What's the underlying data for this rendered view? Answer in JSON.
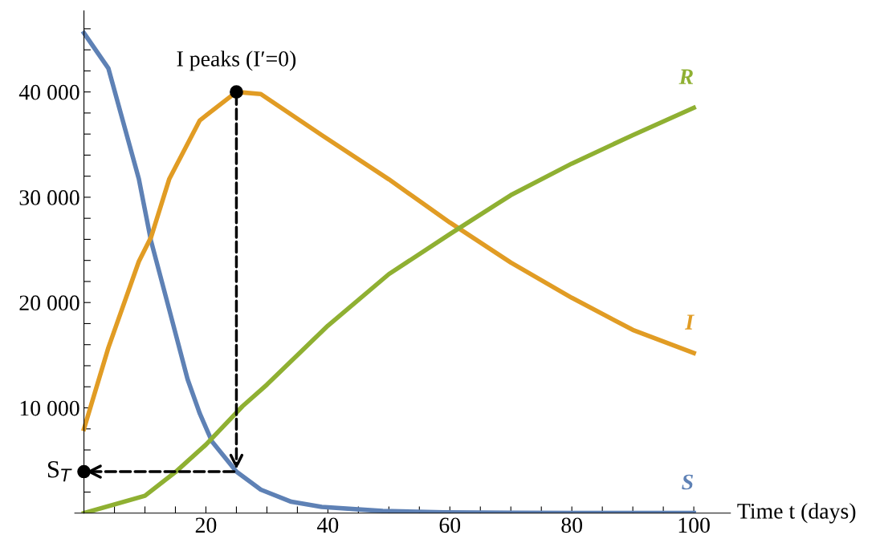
{
  "chart_data": {
    "type": "line",
    "xlabel": "Time t (days)",
    "xlim": [
      -1.5,
      106
    ],
    "ylim": [
      0,
      47700
    ],
    "xticks": [
      {
        "value": 5,
        "label": null
      },
      {
        "value": 10,
        "label": null
      },
      {
        "value": 15,
        "label": null
      },
      20,
      {
        "value": 25,
        "label": null
      },
      {
        "value": 30,
        "label": null
      },
      {
        "value": 35,
        "label": null
      },
      40,
      {
        "value": 45,
        "label": null
      },
      {
        "value": 50,
        "label": null
      },
      {
        "value": 55,
        "label": null
      },
      60,
      {
        "value": 65,
        "label": null
      },
      {
        "value": 70,
        "label": null
      },
      {
        "value": 75,
        "label": null
      },
      80,
      {
        "value": 85,
        "label": null
      },
      {
        "value": 90,
        "label": null
      },
      {
        "value": 95,
        "label": null
      },
      100
    ],
    "yticks": [
      {
        "value": 2000,
        "label": null
      },
      {
        "value": 4000,
        "label": null
      },
      {
        "value": 6000,
        "label": null
      },
      {
        "value": 8000,
        "label": null
      },
      {
        "value": 10000,
        "label": "10 000"
      },
      {
        "value": 12000,
        "label": null
      },
      {
        "value": 14000,
        "label": null
      },
      {
        "value": 16000,
        "label": null
      },
      {
        "value": 18000,
        "label": null
      },
      {
        "value": 20000,
        "label": "20 000"
      },
      {
        "value": 22000,
        "label": null
      },
      {
        "value": 24000,
        "label": null
      },
      {
        "value": 26000,
        "label": null
      },
      {
        "value": 28000,
        "label": null
      },
      {
        "value": 30000,
        "label": "30 000"
      },
      {
        "value": 32000,
        "label": null
      },
      {
        "value": 34000,
        "label": null
      },
      {
        "value": 36000,
        "label": null
      },
      {
        "value": 38000,
        "label": null
      },
      {
        "value": 40000,
        "label": "40 000"
      },
      {
        "value": 42000,
        "label": null
      },
      {
        "value": 44000,
        "label": null
      },
      {
        "value": 46000,
        "label": null
      }
    ],
    "grid": false,
    "legend": false,
    "marker": "none",
    "line_style": "solid",
    "series": [
      {
        "name": "S",
        "color": "#5e81b5",
        "x": [
          0,
          4,
          9,
          11,
          14,
          17,
          19,
          21,
          25,
          29,
          34,
          39,
          49,
          59,
          70,
          80,
          90,
          100
        ],
        "values": [
          45600,
          42250,
          31750,
          25850,
          19300,
          12700,
          9450,
          6800,
          3940,
          2230,
          1080,
          590,
          200,
          80,
          40,
          20,
          15,
          10
        ]
      },
      {
        "name": "I",
        "color": "#e19c24",
        "x": [
          0,
          4,
          9,
          11,
          14,
          19,
          25,
          29,
          39,
          50,
          60,
          70,
          80,
          90,
          100
        ],
        "values": [
          8000,
          15700,
          23900,
          26200,
          31750,
          37300,
          40000,
          39800,
          35900,
          31700,
          27600,
          23800,
          20450,
          17400,
          15200
        ]
      },
      {
        "name": "R",
        "color": "#8fb032",
        "x": [
          0,
          10,
          15,
          20,
          26,
          30,
          40,
          50,
          60,
          70,
          80,
          90,
          100
        ],
        "values": [
          0,
          1650,
          3900,
          6500,
          10150,
          12200,
          17800,
          22700,
          26500,
          30200,
          33200,
          35900,
          38500
        ]
      }
    ],
    "annotations": [
      {
        "text": "I peaks (I′=0)",
        "x": 25,
        "y": 40000
      },
      {
        "text": "S$_{T}$",
        "x": 0,
        "y": 3940
      }
    ]
  }
}
